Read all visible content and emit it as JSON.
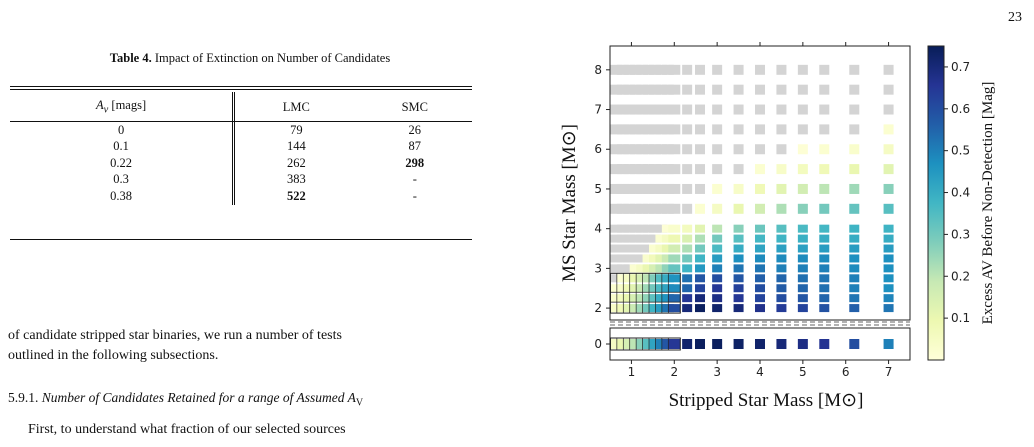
{
  "page_number": "23",
  "table": {
    "caption_label": "Table 4.",
    "caption_text": "Impact of Extinction on Number of Candidates",
    "headers": [
      "Av [mags]",
      "LMC",
      "SMC"
    ],
    "rows": [
      {
        "av": "0",
        "lmc": "79",
        "smc": "26",
        "bold": ""
      },
      {
        "av": "0.1",
        "lmc": "144",
        "smc": "87",
        "bold": ""
      },
      {
        "av": "0.22",
        "lmc": "262",
        "smc": "298",
        "bold": "smc"
      },
      {
        "av": "0.3",
        "lmc": "383",
        "smc": "-",
        "bold": ""
      },
      {
        "av": "0.38",
        "lmc": "522",
        "smc": "-",
        "bold": "lmc"
      }
    ]
  },
  "text": {
    "para1_line1": "of candidate stripped star binaries, we run a number of tests",
    "para1_line2": "outlined in the following subsections.",
    "subsection_number": "5.9.1.",
    "subsection_title": "Number of Candidates Retained for a range of Assumed A",
    "subsection_sub": "V",
    "para2_line1": "First, to understand what fraction of our selected sources"
  },
  "chart_data": {
    "type": "heatmap",
    "xlabel": "Stripped Star Mass [M⊙]",
    "ylabel": "MS Star Mass [M⊙]",
    "colorbar_label": "Excess AV Before Non-Detection [Mag]",
    "xlim": [
      0.5,
      7.5
    ],
    "ylim": [
      -0.3,
      8.6
    ],
    "x_ticks": [
      1,
      2,
      3,
      4,
      5,
      6,
      7
    ],
    "y_ticks": [
      0,
      2,
      3,
      4,
      5,
      6,
      7,
      8
    ],
    "colorbar_ticks": [
      0.1,
      0.2,
      0.3,
      0.4,
      0.5,
      0.6,
      0.7
    ],
    "colorbar_range": [
      0.0,
      0.75
    ],
    "colormap": "YlGnBu",
    "gray_color": "#d4d4d4",
    "x_columns": [
      0.65,
      0.8,
      0.95,
      1.1,
      1.25,
      1.4,
      1.55,
      1.7,
      1.85,
      2.0,
      2.3,
      2.6,
      3.0,
      3.5,
      4.0,
      4.5,
      5.0,
      5.5,
      6.2,
      7.0
    ],
    "cells": [
      {
        "y": 8.0,
        "cutoff": 100,
        "vals": []
      },
      {
        "y": 7.5,
        "cutoff": 100,
        "vals": []
      },
      {
        "y": 7.0,
        "cutoff": 100,
        "vals": []
      },
      {
        "y": 6.5,
        "cutoff": 19,
        "vals": [
          0.02
        ]
      },
      {
        "y": 6.0,
        "cutoff": 16,
        "vals": [
          0.01,
          0.02,
          0.03,
          0.05
        ]
      },
      {
        "y": 5.5,
        "cutoff": 14,
        "vals": [
          0.02,
          0.04,
          0.06,
          0.08,
          0.1,
          0.12
        ]
      },
      {
        "y": 5.0,
        "cutoff": 12,
        "vals": [
          0.02,
          0.04,
          0.08,
          0.12,
          0.16,
          0.2,
          0.24,
          0.27
        ]
      },
      {
        "y": 4.5,
        "cutoff": 11,
        "vals": [
          0.02,
          0.05,
          0.1,
          0.16,
          0.22,
          0.27,
          0.3,
          0.32,
          0.34
        ]
      },
      {
        "y": 4.0,
        "cutoff": 8,
        "vals": [
          0.01,
          0.03,
          0.06,
          0.12,
          0.2,
          0.27,
          0.31,
          0.34,
          0.36,
          0.37,
          0.38,
          0.38
        ]
      },
      {
        "y": 3.75,
        "cutoff": 7,
        "vals": [
          0.02,
          0.05,
          0.09,
          0.14,
          0.22,
          0.3,
          0.34,
          0.37,
          0.38,
          0.39,
          0.4,
          0.4,
          0.4
        ]
      },
      {
        "y": 3.5,
        "cutoff": 6,
        "vals": [
          0.02,
          0.05,
          0.1,
          0.16,
          0.22,
          0.3,
          0.36,
          0.4,
          0.42,
          0.43,
          0.43,
          0.44,
          0.44,
          0.44
        ]
      },
      {
        "y": 3.25,
        "cutoff": 5,
        "vals": [
          0.03,
          0.07,
          0.12,
          0.18,
          0.24,
          0.3,
          0.38,
          0.44,
          0.47,
          0.48,
          0.48,
          0.48,
          0.48,
          0.47,
          0.47
        ]
      },
      {
        "y": 3.0,
        "cutoff": 3,
        "vals": [
          0.02,
          0.05,
          0.1,
          0.15,
          0.2,
          0.26,
          0.32,
          0.38,
          0.45,
          0.5,
          0.52,
          0.52,
          0.5,
          0.5,
          0.5,
          0.48,
          0.47
        ]
      },
      {
        "y": 2.75,
        "cutoff": 1,
        "vals": [
          0.02,
          0.05,
          0.1,
          0.15,
          0.2,
          0.28,
          0.35,
          0.4,
          0.46,
          0.53,
          0.58,
          0.6,
          0.58,
          0.56,
          0.55,
          0.53,
          0.52,
          0.5,
          0.47
        ]
      },
      {
        "y": 2.5,
        "cutoff": 0,
        "vals": [
          0.02,
          0.04,
          0.08,
          0.12,
          0.18,
          0.24,
          0.3,
          0.36,
          0.42,
          0.48,
          0.55,
          0.62,
          0.65,
          0.63,
          0.6,
          0.57,
          0.55,
          0.53,
          0.5,
          0.47
        ]
      },
      {
        "y": 2.25,
        "cutoff": 0,
        "vals": [
          0.03,
          0.06,
          0.1,
          0.15,
          0.2,
          0.26,
          0.33,
          0.4,
          0.46,
          0.55,
          0.65,
          0.7,
          0.68,
          0.65,
          0.62,
          0.6,
          0.58,
          0.55,
          0.52,
          0.49
        ]
      },
      {
        "y": 2.0,
        "cutoff": 0,
        "vals": [
          0.04,
          0.08,
          0.12,
          0.18,
          0.24,
          0.3,
          0.38,
          0.44,
          0.52,
          0.6,
          0.7,
          0.74,
          0.72,
          0.7,
          0.67,
          0.64,
          0.62,
          0.59,
          0.56,
          0.52
        ]
      },
      {
        "y": 0.0,
        "cutoff": 0,
        "vals": [
          0.05,
          0.1,
          0.15,
          0.2,
          0.27,
          0.34,
          0.42,
          0.5,
          0.58,
          0.65,
          0.72,
          0.74,
          0.74,
          0.73,
          0.72,
          0.7,
          0.68,
          0.66,
          0.6,
          0.5
        ]
      }
    ],
    "outlined_x_max": 2.0,
    "outlined_y_max": 2.75
  }
}
